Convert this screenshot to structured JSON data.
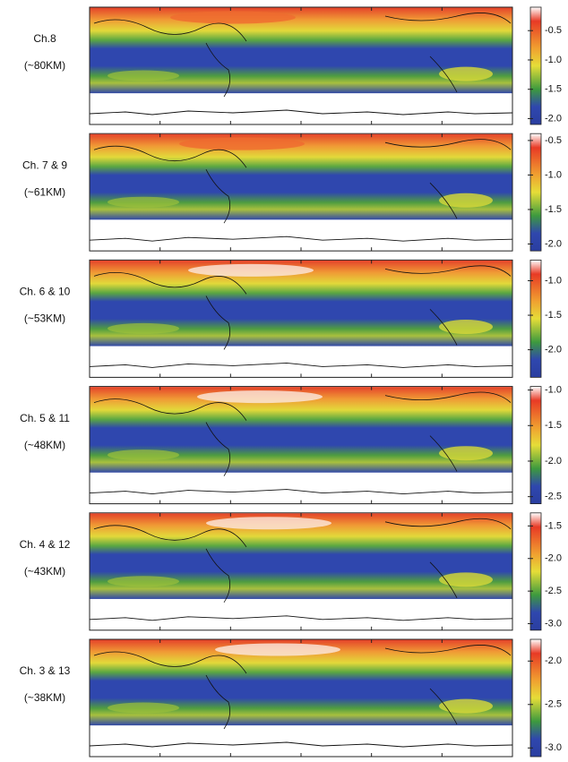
{
  "panels": [
    {
      "label": "Ch.8",
      "altitude": "(~80KM)",
      "colorbar": {
        "clim": [
          -0.1,
          -2.1
        ],
        "ticks": [
          -0.5,
          {
            "value": -1,
            "label": "-1.0"
          },
          -1.5,
          {
            "value": -2,
            "label": "-2.0"
          }
        ]
      }
    },
    {
      "label": "Ch. 7 & 9",
      "altitude": "(~61KM)",
      "colorbar": {
        "clim": [
          -0.4,
          -2.1
        ],
        "ticks": [
          -0.5,
          {
            "value": -1,
            "label": "-1.0"
          },
          -1.5,
          {
            "value": -2,
            "label": "-2.0"
          }
        ]
      }
    },
    {
      "label": "Ch. 6 & 10",
      "altitude": "(~53KM)",
      "colorbar": {
        "clim": [
          -0.7,
          -2.4
        ],
        "ticks": [
          {
            "value": -1,
            "label": "-1.0"
          },
          -1.5,
          {
            "value": -2,
            "label": "-2.0"
          }
        ]
      }
    },
    {
      "label": "Ch. 5 & 11",
      "altitude": "(~48KM)",
      "colorbar": {
        "clim": [
          -0.95,
          -2.6
        ],
        "ticks": [
          {
            "value": -1,
            "label": "-1.0"
          },
          -1.5,
          {
            "value": -2,
            "label": "-2.0"
          },
          -2.5
        ]
      }
    },
    {
      "label": "Ch. 4 & 12",
      "altitude": "(~43KM)",
      "colorbar": {
        "clim": [
          -1.3,
          -3.1
        ],
        "ticks": [
          -1.5,
          {
            "value": -2,
            "label": "-2.0"
          },
          -2.5,
          {
            "value": -3,
            "label": "-3.0"
          }
        ]
      }
    },
    {
      "label": "Ch. 3 & 13",
      "altitude": "(~38KM)",
      "colorbar": {
        "clim": [
          -1.75,
          -3.1
        ],
        "ticks": [
          {
            "value": -2,
            "label": "-2.0"
          },
          -2.5,
          {
            "value": -3,
            "label": "-3.0"
          }
        ]
      }
    }
  ]
}
